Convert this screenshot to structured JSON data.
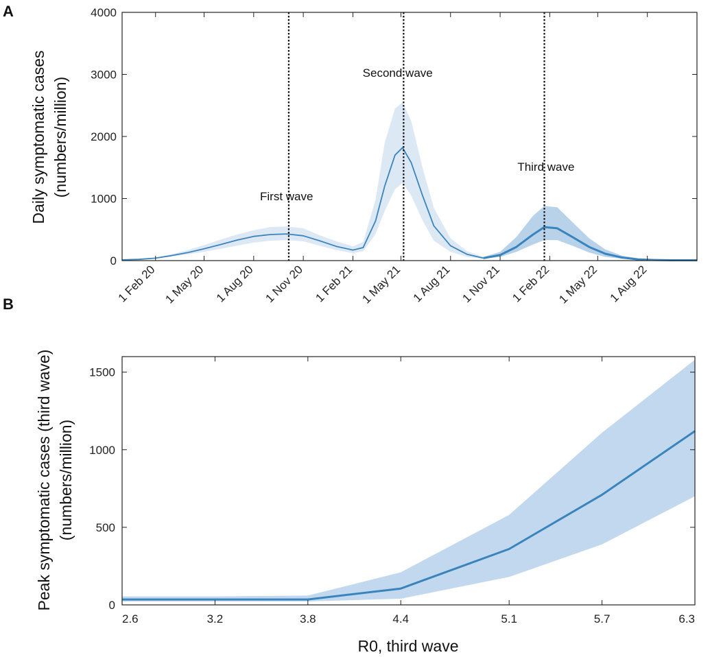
{
  "chart_data": [
    {
      "panel": "A",
      "type": "line",
      "xlabel": "",
      "ylabel_line1": "Daily symptomatic cases",
      "ylabel_line2": "(numbers/million)",
      "ylim": [
        0,
        4000
      ],
      "yticks": [
        0,
        1000,
        2000,
        3000,
        4000
      ],
      "xlim": [
        "2019-12-01",
        "2022-11-01"
      ],
      "xticks": [
        {
          "date": "2020-02-01",
          "label": "1 Feb 20"
        },
        {
          "date": "2020-05-01",
          "label": "1 May 20"
        },
        {
          "date": "2020-08-01",
          "label": "1 Aug 20"
        },
        {
          "date": "2020-11-01",
          "label": "1 Nov 20"
        },
        {
          "date": "2021-02-01",
          "label": "1 Feb 21"
        },
        {
          "date": "2021-05-01",
          "label": "1 May 21"
        },
        {
          "date": "2021-08-01",
          "label": "1 Aug 21"
        },
        {
          "date": "2021-11-01",
          "label": "1 Nov 21"
        },
        {
          "date": "2022-02-01",
          "label": "1 Feb 22"
        },
        {
          "date": "2022-05-01",
          "label": "1 May 22"
        },
        {
          "date": "2022-08-01",
          "label": "1 Aug 22"
        }
      ],
      "grid": false,
      "series_color": "#3a84be",
      "band_light": "#dde8f5",
      "band_dark": "#b8d2ea",
      "vlines": [
        "2020-10-05",
        "2021-05-06",
        "2022-01-22"
      ],
      "annotations": [
        {
          "text": "First wave",
          "date": "2020-10-01",
          "y": 970
        },
        {
          "text": "Second wave",
          "date": "2021-04-25",
          "y": 2960
        },
        {
          "text": "Third wave",
          "date": "2022-01-25",
          "y": 1450
        }
      ],
      "series": [
        {
          "band": "light",
          "points": [
            [
              "2019-12-01",
              12,
              12,
              12
            ],
            [
              "2020-01-01",
              20,
              18,
              22
            ],
            [
              "2020-02-01",
              40,
              35,
              45
            ],
            [
              "2020-03-01",
              80,
              65,
              100
            ],
            [
              "2020-04-01",
              130,
              100,
              170
            ],
            [
              "2020-05-01",
              190,
              140,
              250
            ],
            [
              "2020-06-01",
              260,
              190,
              340
            ],
            [
              "2020-07-01",
              330,
              240,
              420
            ],
            [
              "2020-08-01",
              390,
              290,
              490
            ],
            [
              "2020-09-01",
              420,
              320,
              540
            ],
            [
              "2020-10-01",
              430,
              330,
              550
            ],
            [
              "2020-11-01",
              400,
              310,
              520
            ],
            [
              "2020-12-01",
              320,
              240,
              410
            ],
            [
              "2021-01-01",
              230,
              170,
              310
            ],
            [
              "2021-02-01",
              170,
              120,
              230
            ],
            [
              "2021-02-20",
              210,
              150,
              300
            ],
            [
              "2021-03-15",
              640,
              430,
              980
            ],
            [
              "2021-04-01",
              1200,
              800,
              1900
            ],
            [
              "2021-04-20",
              1700,
              1150,
              2450
            ],
            [
              "2021-05-04",
              1820,
              1250,
              2550
            ],
            [
              "2021-05-20",
              1580,
              1050,
              2250
            ],
            [
              "2021-06-10",
              1050,
              650,
              1500
            ],
            [
              "2021-07-01",
              560,
              320,
              850
            ],
            [
              "2021-08-01",
              240,
              140,
              360
            ],
            [
              "2021-09-01",
              100,
              60,
              150
            ],
            [
              "2021-10-01",
              40,
              30,
              60
            ]
          ]
        },
        {
          "band": "dark",
          "points": [
            [
              "2021-10-01",
              40,
              30,
              60
            ],
            [
              "2021-11-01",
              90,
              60,
              140
            ],
            [
              "2021-12-01",
              220,
              140,
              380
            ],
            [
              "2022-01-01",
              420,
              260,
              720
            ],
            [
              "2022-01-22",
              540,
              330,
              880
            ],
            [
              "2022-02-15",
              520,
              330,
              860
            ],
            [
              "2022-03-15",
              380,
              240,
              620
            ],
            [
              "2022-04-15",
              220,
              130,
              360
            ],
            [
              "2022-05-15",
              110,
              60,
              180
            ],
            [
              "2022-06-15",
              50,
              30,
              80
            ],
            [
              "2022-07-15",
              20,
              12,
              35
            ],
            [
              "2022-08-15",
              10,
              6,
              16
            ],
            [
              "2022-09-15",
              6,
              4,
              10
            ],
            [
              "2022-11-01",
              5,
              3,
              8
            ]
          ]
        }
      ]
    },
    {
      "panel": "B",
      "type": "line",
      "xlabel": "R0, third wave",
      "ylabel_line1": "Peak symptomatic cases (third wave)",
      "ylabel_line2": "(numbers/million)",
      "ylim": [
        0,
        1600
      ],
      "yticks": [
        0,
        500,
        1000,
        1500
      ],
      "x": [
        2.6,
        3.2,
        3.8,
        4.4,
        5.1,
        5.7,
        6.3
      ],
      "xtick_labels": [
        "2.6",
        "3.2",
        "3.8",
        "4.4",
        "5.1",
        "5.7",
        "6.3"
      ],
      "grid": false,
      "series_color": "#3a84be",
      "band_color": "#c2d8ee",
      "values": [
        35,
        35,
        35,
        105,
        360,
        710,
        1120
      ],
      "lower": [
        22,
        22,
        22,
        40,
        180,
        390,
        700
      ],
      "upper": [
        55,
        55,
        60,
        210,
        580,
        1110,
        1580
      ]
    }
  ]
}
